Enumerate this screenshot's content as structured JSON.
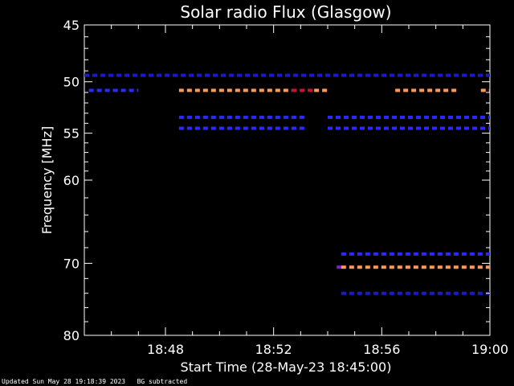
{
  "chart_data": {
    "type": "heatmap",
    "title": "Solar radio Flux (Glasgow)",
    "xlabel": "Start Time (28-May-23 18:45:00)",
    "ylabel": "Frequency [MHz]",
    "xlim": [
      "18:45:00",
      "19:00:00"
    ],
    "ylim": [
      45,
      80
    ],
    "x_ticks": [
      "18:48",
      "18:52",
      "18:56",
      "19:00"
    ],
    "y_ticks": [
      45,
      50,
      55,
      60,
      70,
      80
    ],
    "y_scale": "log",
    "grid": false,
    "background": "#000000",
    "colors": {
      "dark_blue": "#1a1acc",
      "blue": "#2a2aff",
      "orange": "#ff9955",
      "red": "#cc1133",
      "purple": "#7a22cc"
    },
    "bands": [
      {
        "freq": 49.4,
        "start": "18:45:00",
        "end": "19:00:00",
        "color": "dark_blue"
      },
      {
        "freq": 50.8,
        "start": "18:45:10",
        "end": "18:47:00",
        "color": "blue"
      },
      {
        "freq": 50.8,
        "start": "18:48:30",
        "end": "18:52:40",
        "color": "orange"
      },
      {
        "freq": 50.8,
        "start": "18:52:40",
        "end": "18:53:30",
        "color": "red"
      },
      {
        "freq": 50.8,
        "start": "18:53:30",
        "end": "18:54:00",
        "color": "orange"
      },
      {
        "freq": 50.8,
        "start": "18:56:30",
        "end": "18:58:50",
        "color": "orange"
      },
      {
        "freq": 50.8,
        "start": "18:59:40",
        "end": "19:00:00",
        "color": "orange"
      },
      {
        "freq": 53.4,
        "start": "18:48:30",
        "end": "18:53:10",
        "color": "blue"
      },
      {
        "freq": 53.4,
        "start": "18:54:00",
        "end": "19:00:00",
        "color": "blue"
      },
      {
        "freq": 54.5,
        "start": "18:48:30",
        "end": "18:53:10",
        "color": "blue"
      },
      {
        "freq": 54.5,
        "start": "18:54:00",
        "end": "19:00:00",
        "color": "blue"
      },
      {
        "freq": 68.8,
        "start": "18:54:30",
        "end": "19:00:00",
        "color": "blue"
      },
      {
        "freq": 70.5,
        "start": "18:54:20",
        "end": "18:54:30",
        "color": "purple"
      },
      {
        "freq": 70.5,
        "start": "18:54:30",
        "end": "19:00:00",
        "color": "orange"
      },
      {
        "freq": 74.0,
        "start": "18:54:30",
        "end": "19:00:00",
        "color": "dark_blue"
      }
    ]
  },
  "footer": {
    "updated": "Updated Sun May 28 19:18:39 2023",
    "note": "BG subtracted"
  }
}
